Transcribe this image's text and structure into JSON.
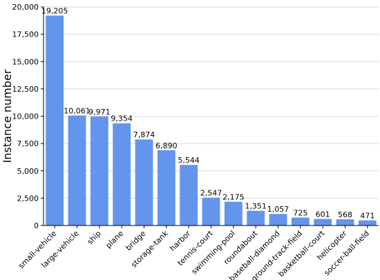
{
  "chart_data": {
    "type": "bar",
    "ylabel": "Instance number",
    "xlabel": "",
    "ylim": [
      0,
      20000
    ],
    "y_ticks": [
      0,
      2500,
      5000,
      7500,
      10000,
      12500,
      15000,
      17500,
      20000
    ],
    "y_tick_labels": [
      "0",
      "2,500",
      "5,000",
      "7,500",
      "10,000",
      "12,500",
      "15,000",
      "17,500",
      "20,000"
    ],
    "grid": "horizontal",
    "bar_color": "#6495ED",
    "categories": [
      "small-vehicle",
      "large-vehicle",
      "ship",
      "plane",
      "bridge",
      "storage-tank",
      "harbor",
      "tennis-court",
      "swimming-pool",
      "roundabout",
      "baseball-diamond",
      "ground-track-field",
      "basketball-court",
      "helicopter",
      "soccer-ball-field"
    ],
    "values": [
      19205,
      10061,
      9971,
      9354,
      7874,
      6890,
      5544,
      2547,
      2175,
      1351,
      1057,
      725,
      601,
      568,
      471
    ],
    "value_labels": [
      "19,205",
      "10,061",
      "9,971",
      "9,354",
      "7,874",
      "6,890",
      "5,544",
      "2,547",
      "2,175",
      "1,351",
      "1,057",
      "725",
      "601",
      "568",
      "471"
    ]
  }
}
